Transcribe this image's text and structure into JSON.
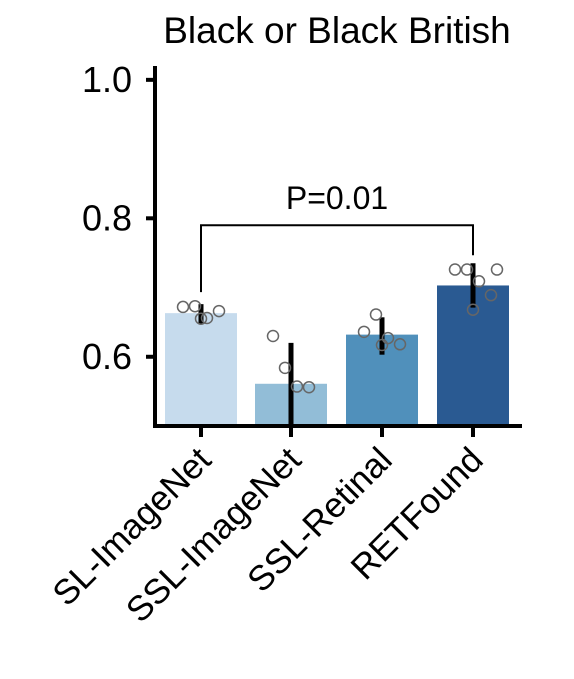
{
  "chart_data": {
    "type": "bar",
    "title": "Black or Black British",
    "xlabel": "",
    "ylabel": "",
    "ylim": [
      0.5,
      1.02
    ],
    "yticks": [
      0.6,
      0.8,
      1.0
    ],
    "ytick_labels": [
      "0.6",
      "0.8",
      "1.0"
    ],
    "grid": false,
    "categories": [
      "SL-ImageNet",
      "SSL-ImageNet",
      "SSL-Retinal",
      "RETFound"
    ],
    "values": [
      0.663,
      0.561,
      0.632,
      0.703
    ],
    "error_low": [
      0.648,
      0.487,
      0.603,
      0.671
    ],
    "error_high": [
      0.676,
      0.62,
      0.657,
      0.735
    ],
    "points": [
      [
        0.672,
        0.673,
        0.656,
        0.666,
        0.655
      ],
      [
        0.63,
        0.584,
        0.557,
        0.556
      ],
      [
        0.636,
        0.661,
        0.627,
        0.618,
        0.617
      ],
      [
        0.726,
        0.726,
        0.709,
        0.689,
        0.668,
        0.726
      ]
    ],
    "colors": [
      "#c6dbed",
      "#92bdd7",
      "#5090bb",
      "#2a5a92"
    ],
    "annotation": {
      "text": "P=0.01",
      "from": "SL-ImageNet",
      "to": "RETFound",
      "y": 0.79
    }
  }
}
